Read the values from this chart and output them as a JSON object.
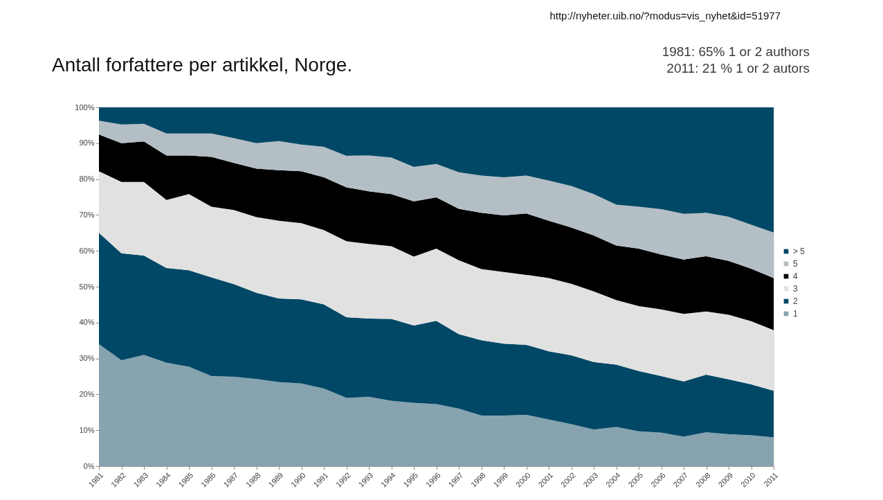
{
  "chart_data": {
    "type": "area",
    "stacked": true,
    "title": "Antall forfattere per artikkel, Norge.",
    "annotations": [
      "http://nyheter.uib.no/?modus=vis_nyhet&id=51977",
      "1981: 65% 1 or 2 authors",
      "2011: 21 % 1 or 2 autors"
    ],
    "categories": [
      "1981",
      "1982",
      "1983",
      "1984",
      "1985",
      "1986",
      "1987",
      "1988",
      "1989",
      "1990",
      "1991",
      "1992",
      "1993",
      "1994",
      "1995",
      "1996",
      "1997",
      "1998",
      "1999",
      "2000",
      "2001",
      "2002",
      "2003",
      "2004",
      "2005",
      "2006",
      "2007",
      "2008",
      "2009",
      "2010",
      "2011"
    ],
    "series": [
      {
        "name": "1",
        "color": "#87a3b0",
        "values": [
          34.0,
          29.5,
          31.0,
          28.8,
          27.7,
          25.1,
          24.9,
          24.3,
          23.4,
          23.0,
          21.6,
          19.0,
          19.3,
          18.2,
          17.6,
          17.3,
          16.0,
          14.1,
          14.1,
          14.3,
          13.0,
          11.7,
          10.2,
          10.9,
          9.7,
          9.3,
          8.2,
          9.4,
          8.9,
          8.6,
          8.0
        ]
      },
      {
        "name": "2",
        "color": "#004866",
        "values": [
          31.0,
          29.8,
          27.7,
          26.4,
          26.9,
          27.5,
          25.8,
          24.0,
          23.3,
          23.5,
          23.5,
          22.5,
          21.8,
          22.8,
          21.6,
          23.2,
          20.8,
          21.0,
          20.0,
          19.5,
          19.0,
          19.2,
          18.8,
          17.4,
          16.8,
          15.8,
          15.4,
          16.1,
          15.3,
          14.2,
          13.0
        ]
      },
      {
        "name": "3",
        "color": "#e1e1e1",
        "values": [
          17.2,
          19.9,
          20.5,
          19.0,
          21.2,
          19.7,
          20.7,
          21.1,
          21.7,
          21.2,
          20.7,
          21.2,
          20.8,
          20.3,
          19.2,
          20.1,
          20.6,
          19.8,
          20.0,
          19.5,
          20.4,
          19.9,
          19.7,
          18.0,
          18.1,
          18.6,
          18.8,
          17.6,
          18.0,
          17.6,
          16.9
        ]
      },
      {
        "name": "4",
        "color": "#000000",
        "values": [
          10.2,
          10.8,
          11.3,
          12.4,
          10.8,
          13.9,
          13.1,
          13.5,
          14.1,
          14.5,
          14.7,
          15.0,
          14.7,
          14.5,
          15.4,
          14.3,
          14.3,
          15.7,
          15.8,
          17.1,
          16.0,
          15.7,
          15.6,
          15.2,
          16.0,
          15.3,
          15.2,
          15.4,
          15.0,
          14.6,
          14.5
        ]
      },
      {
        "name": "5",
        "color": "#b4bec5",
        "values": [
          3.9,
          5.2,
          4.9,
          6.1,
          6.1,
          6.5,
          6.9,
          7.1,
          8.1,
          7.4,
          8.5,
          8.8,
          10.0,
          10.2,
          9.6,
          9.3,
          10.2,
          10.4,
          10.6,
          10.6,
          11.2,
          11.6,
          11.5,
          11.4,
          11.7,
          12.6,
          12.7,
          12.1,
          12.3,
          12.3,
          12.7
        ]
      },
      {
        "name": "> 5",
        "color": "#004866",
        "values": [
          3.7,
          4.8,
          4.6,
          7.3,
          7.3,
          7.3,
          8.6,
          10.0,
          9.4,
          10.4,
          11.0,
          13.5,
          13.4,
          14.0,
          16.6,
          15.8,
          18.1,
          19.0,
          19.5,
          19.0,
          20.4,
          21.9,
          24.2,
          27.1,
          27.7,
          28.4,
          29.7,
          29.4,
          30.5,
          32.7,
          34.9
        ]
      }
    ],
    "ylim": [
      0,
      100
    ],
    "yticks": [
      {
        "value": 0,
        "label": "0%"
      },
      {
        "value": 10,
        "label": "10%"
      },
      {
        "value": 20,
        "label": "20%"
      },
      {
        "value": 30,
        "label": "30%"
      },
      {
        "value": 40,
        "label": "40%"
      },
      {
        "value": 50,
        "label": "50%"
      },
      {
        "value": 60,
        "label": "60%"
      },
      {
        "value": 70,
        "label": "70%"
      },
      {
        "value": 80,
        "label": "80%"
      },
      {
        "value": 90,
        "label": "90%"
      },
      {
        "value": 100,
        "label": "100%"
      }
    ],
    "legend": "right"
  }
}
